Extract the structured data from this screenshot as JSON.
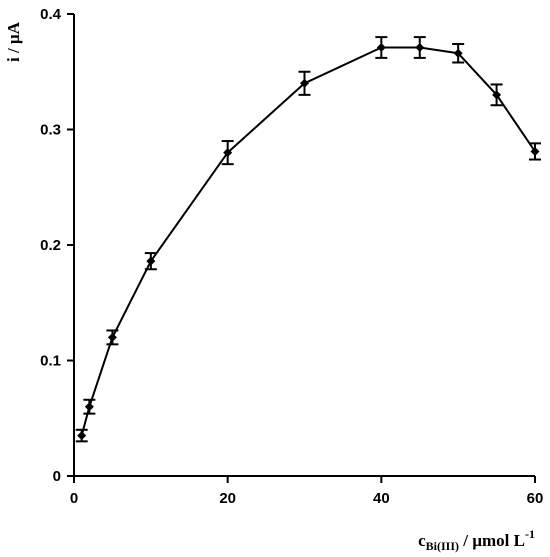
{
  "chart_data": {
    "type": "line",
    "xlabel_main": "c",
    "xlabel_sub": "Bi(III)",
    "xlabel_rest": " / µmol L",
    "xlabel_sup": "-1",
    "ylabel": "i / µA",
    "xlim": [
      0,
      60
    ],
    "ylim": [
      0,
      0.4
    ],
    "xticks": [
      0,
      20,
      40,
      60
    ],
    "xtick_labels": [
      "0",
      "20",
      "40",
      "60"
    ],
    "yticks": [
      0,
      0.1,
      0.2,
      0.3,
      0.4
    ],
    "ytick_labels": [
      "0",
      "0.1",
      "0.2",
      "0.3",
      "0.4"
    ],
    "grid": false,
    "marker": "diamond",
    "series": [
      {
        "x": [
          1,
          2,
          5,
          10,
          20,
          30,
          40,
          45,
          50,
          55,
          60
        ],
        "y": [
          0.035,
          0.06,
          0.12,
          0.186,
          0.28,
          0.34,
          0.371,
          0.371,
          0.366,
          0.33,
          0.281
        ],
        "error": [
          0.005,
          0.006,
          0.006,
          0.007,
          0.01,
          0.01,
          0.009,
          0.009,
          0.008,
          0.009,
          0.007
        ]
      }
    ],
    "color": "#000000"
  }
}
